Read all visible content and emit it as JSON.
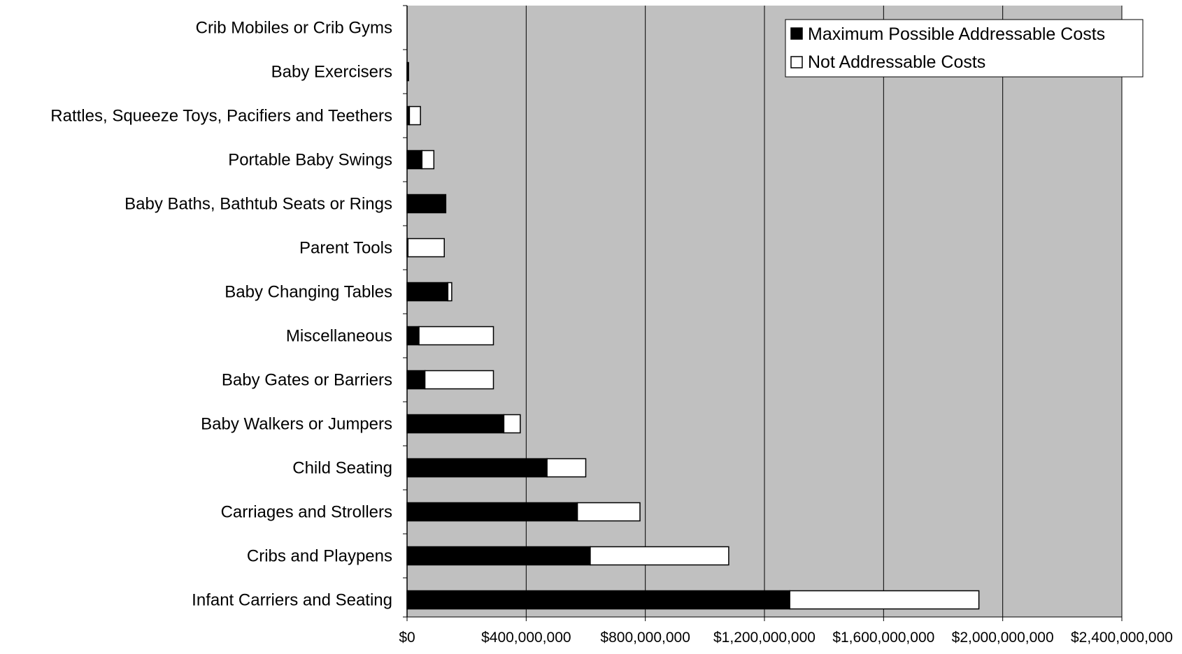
{
  "chart_data": {
    "type": "bar",
    "orientation": "horizontal",
    "stacked": true,
    "categories": [
      "Crib Mobiles or Crib Gyms",
      "Baby Exercisers",
      "Rattles, Squeeze Toys, Pacifiers and Teethers",
      "Portable Baby Swings",
      "Baby Baths, Bathtub Seats or Rings",
      "Parent Tools",
      "Baby Changing Tables",
      "Miscellaneous",
      "Baby Gates or Barriers",
      "Baby Walkers or Jumpers",
      "Child Seating",
      "Carriages and Strollers",
      "Cribs and Playpens",
      "Infant Carriers and Seating"
    ],
    "series": [
      {
        "name": "Maximum Possible Addressable Costs",
        "color": "#000000",
        "values": [
          0,
          5000000,
          8000000,
          50000000,
          130000000,
          3000000,
          137000000,
          40000000,
          60000000,
          325000000,
          470000000,
          572000000,
          615000000,
          1285000000
        ]
      },
      {
        "name": "Not Addressable Costs",
        "color": "#ffffff",
        "values": [
          0,
          0,
          37000000,
          40000000,
          0,
          122000000,
          13000000,
          250000000,
          230000000,
          55000000,
          130000000,
          210000000,
          465000000,
          635000000
        ]
      }
    ],
    "x_ticks": [
      "$0",
      "$400,000,000",
      "$800,000,000",
      "$1,200,000,000",
      "$1,600,000,000",
      "$2,000,000,000",
      "$2,400,000,000"
    ],
    "xlim": [
      0,
      2400000000
    ],
    "xlabel": "",
    "ylabel": "",
    "title": "",
    "grid": "vertical",
    "legend_position": "top-right",
    "plot_background": "#c0c0c0"
  }
}
